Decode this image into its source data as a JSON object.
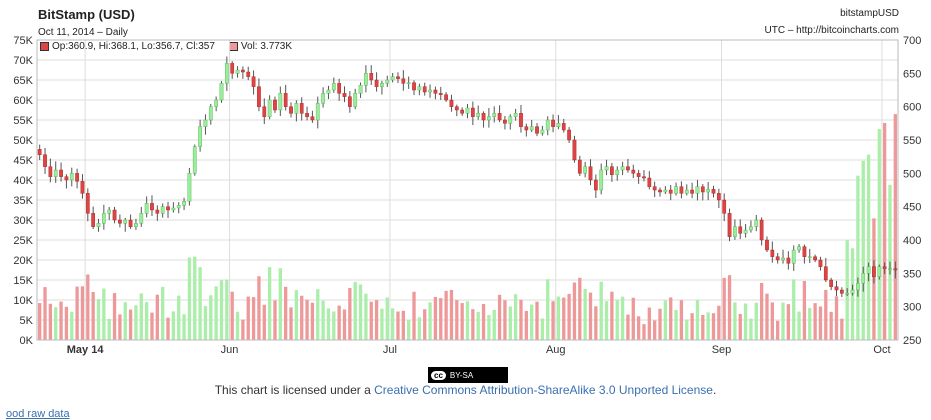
{
  "header": {
    "title": "BitStamp (USD)",
    "subtitle": "Oct 11, 2014 – Daily",
    "exchange_tag": "bitstampUSD",
    "source": "UTC – http://bitcoincharts.com"
  },
  "legend": {
    "ohlc_text": "Op:360.9, Hi:368.1, Lo:356.7, Cl:357",
    "vol_text": "Vol: 3.773K"
  },
  "license": {
    "badge": "BY-SA",
    "prefix": "This chart is licensed under a ",
    "link_text": "Creative Commons Attribution-ShareAlike 3.0 Unported License",
    "suffix": "."
  },
  "footer": {
    "link_text": "ood raw data"
  },
  "colors": {
    "up": "#99ee99",
    "down": "#dd4444",
    "up_vol": "#aaeeaa",
    "down_vol": "#ee9999",
    "grid": "#dddddd"
  },
  "chart_data": {
    "type": "candlestick",
    "x_ticks": [
      "May 14",
      "Jun",
      "Jul",
      "Aug",
      "Sep",
      "Oct"
    ],
    "x_tick_days": [
      9,
      36,
      66,
      97,
      128,
      158
    ],
    "volume_axis": {
      "ticks": [
        "0K",
        "5K",
        "10K",
        "15K",
        "20K",
        "25K",
        "30K",
        "35K",
        "40K",
        "45K",
        "50K",
        "55K",
        "60K",
        "65K",
        "70K",
        "75K"
      ],
      "ylim": [
        0,
        75000
      ]
    },
    "price_axis": {
      "ticks": [
        250,
        300,
        350,
        400,
        450,
        500,
        550,
        600,
        650,
        700
      ],
      "ylim": [
        250,
        700
      ]
    },
    "days_shown": 161,
    "close": [
      528,
      510,
      495,
      505,
      495,
      490,
      500,
      488,
      470,
      440,
      420,
      425,
      440,
      445,
      430,
      425,
      430,
      420,
      425,
      440,
      455,
      445,
      440,
      450,
      445,
      448,
      452,
      458,
      500,
      540,
      570,
      580,
      600,
      610,
      635,
      665,
      650,
      655,
      652,
      645,
      630,
      600,
      585,
      610,
      595,
      620,
      600,
      590,
      605,
      590,
      585,
      580,
      605,
      620,
      625,
      635,
      620,
      615,
      600,
      620,
      632,
      650,
      640,
      630,
      635,
      640,
      645,
      642,
      635,
      636,
      625,
      630,
      622,
      625,
      620,
      618,
      610,
      600,
      595,
      590,
      598,
      585,
      590,
      580,
      585,
      590,
      580,
      575,
      585,
      590,
      570,
      565,
      570,
      560,
      565,
      580,
      570,
      575,
      565,
      550,
      520,
      500,
      510,
      490,
      475,
      505,
      510,
      498,
      505,
      510,
      505,
      500,
      495,
      493,
      480,
      475,
      472,
      475,
      470,
      480,
      470,
      475,
      470,
      480,
      472,
      476,
      470,
      460,
      440,
      405,
      420,
      410,
      415,
      420,
      430,
      400,
      385,
      375,
      370,
      373,
      365,
      385,
      390,
      375,
      375,
      370,
      360,
      340,
      330,
      325,
      320,
      320,
      325,
      335,
      350,
      360,
      345,
      360,
      357,
      357,
      355
    ]
  }
}
